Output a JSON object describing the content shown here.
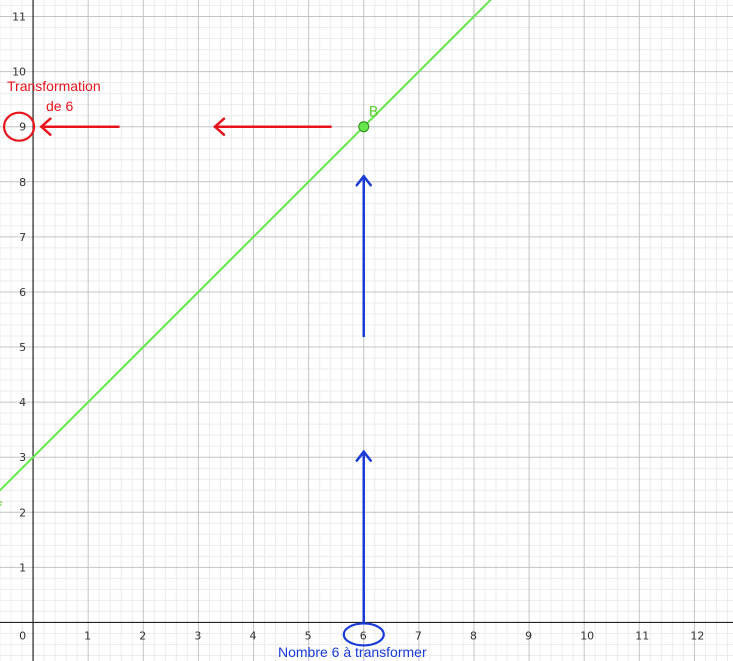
{
  "chart_data": {
    "type": "line",
    "x_ticks": [
      0,
      1,
      2,
      3,
      4,
      5,
      6,
      7,
      8,
      9,
      10,
      11,
      12
    ],
    "y_ticks": [
      1,
      2,
      3,
      4,
      5,
      6,
      7,
      8,
      9,
      10,
      11
    ],
    "xlim": [
      -0.6,
      12.7
    ],
    "ylim": [
      -0.7,
      11.3
    ],
    "grid": true,
    "minor_grid_per_unit": 5,
    "series": [
      {
        "name": "f",
        "x": [
          -1,
          13
        ],
        "y": [
          2,
          16
        ],
        "color": "#66e84a"
      }
    ],
    "point": {
      "name": "B",
      "x": 6,
      "y": 9,
      "color": "#66e84a"
    }
  },
  "annotations": {
    "red_title_line1": "Transformation",
    "red_title_line2": "de 6",
    "red_circled_value": "9",
    "blue_label": "Nombre 6 à transformer",
    "blue_circled_value": "6",
    "red_color": "#e8141b",
    "blue_color": "#1a3bd6"
  }
}
